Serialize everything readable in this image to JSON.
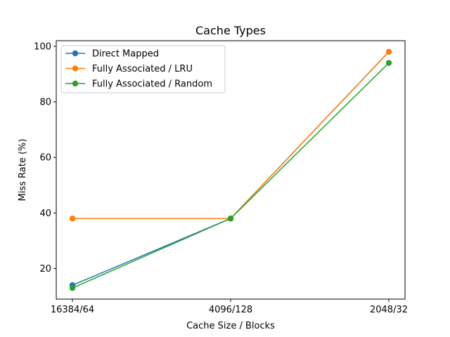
{
  "chart_data": {
    "type": "line",
    "title": "Cache Types",
    "xlabel": "Cache Size / Blocks",
    "ylabel": "Miss Rate (%)",
    "categories": [
      "16384/64",
      "4096/128",
      "2048/32"
    ],
    "ylim": [
      9,
      102
    ],
    "yticks": [
      20,
      40,
      60,
      80,
      100
    ],
    "grid": false,
    "legend_position": "top-left",
    "series": [
      {
        "name": "Direct Mapped",
        "color": "#1f77b4",
        "values": [
          14,
          38,
          98
        ]
      },
      {
        "name": "Fully Associated / LRU",
        "color": "#ff7f0e",
        "values": [
          38,
          38,
          98
        ]
      },
      {
        "name": "Fully Associated / Random",
        "color": "#2ca02c",
        "values": [
          13,
          38,
          94
        ]
      }
    ]
  }
}
